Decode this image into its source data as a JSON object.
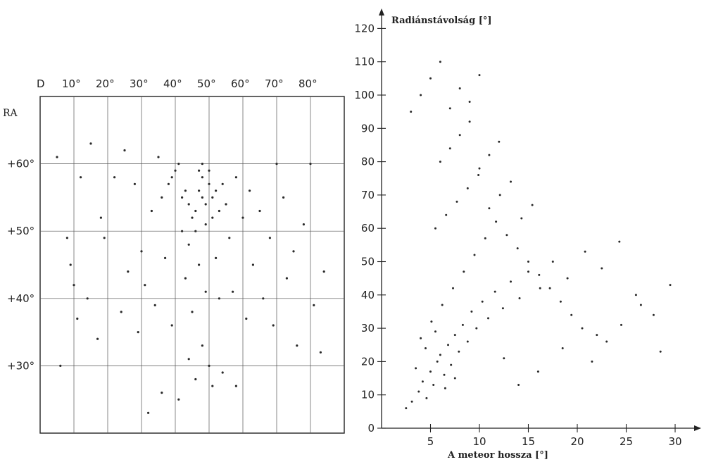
{
  "chart_data": [
    {
      "type": "scatter",
      "title": "",
      "xlabel": "D",
      "ylabel": "RA",
      "x_ticks": [
        "10°",
        "20°",
        "30°",
        "40°",
        "50°",
        "60°",
        "70°",
        "80°"
      ],
      "y_ticks": [
        "+60°",
        "+50°",
        "+40°",
        "+30°"
      ],
      "xlim": [
        0,
        90
      ],
      "ylim": [
        20,
        70
      ],
      "grid": true,
      "x": [
        48,
        49,
        47,
        50,
        46,
        51,
        45,
        52,
        48,
        44,
        53,
        49,
        47,
        50,
        43,
        54,
        46,
        51,
        42,
        55,
        48,
        40,
        39,
        41,
        38,
        42,
        36,
        35,
        44,
        33,
        58,
        60,
        62,
        28,
        25,
        30,
        22,
        65,
        68,
        70,
        18,
        15,
        72,
        75,
        12,
        10,
        78,
        80,
        8,
        5,
        84,
        47,
        52,
        43,
        56,
        37,
        31,
        63,
        26,
        19,
        66,
        73,
        14,
        9,
        81,
        49,
        45,
        53,
        39,
        57,
        34,
        61,
        29,
        24,
        69,
        76,
        17,
        11,
        83,
        6,
        48,
        50,
        46,
        51,
        44,
        54,
        41,
        58,
        36,
        32
      ],
      "y": [
        55,
        54,
        56,
        57,
        53,
        55,
        52,
        56,
        58,
        54,
        53,
        51,
        59,
        59,
        56,
        57,
        50,
        52,
        55,
        54,
        60,
        59,
        58,
        60,
        57,
        50,
        55,
        61,
        48,
        53,
        58,
        52,
        56,
        57,
        62,
        47,
        58,
        53,
        49,
        60,
        52,
        63,
        55,
        47,
        58,
        42,
        51,
        60,
        49,
        61,
        44,
        45,
        46,
        43,
        49,
        46,
        42,
        45,
        44,
        49,
        40,
        43,
        40,
        45,
        39,
        41,
        38,
        40,
        36,
        41,
        39,
        37,
        35,
        38,
        36,
        33,
        34,
        37,
        32,
        30,
        33,
        30,
        28,
        27,
        31,
        29,
        25,
        27,
        26,
        23
      ]
    },
    {
      "type": "scatter",
      "title": "",
      "xlabel": "A meteor hossza [°]",
      "ylabel": "Radiánstávolság [°]",
      "x_ticks": [
        "5",
        "10",
        "15",
        "20",
        "25",
        "30"
      ],
      "y_ticks": [
        "0",
        "10",
        "20",
        "30",
        "40",
        "50",
        "60",
        "70",
        "80",
        "90",
        "100",
        "110",
        "120"
      ],
      "xlim": [
        0,
        32
      ],
      "ylim": [
        0,
        125
      ],
      "grid": false,
      "x": [
        2.5,
        3.1,
        3.8,
        4.2,
        4.6,
        5.0,
        5.3,
        5.7,
        6.0,
        6.4,
        6.8,
        7.1,
        7.5,
        7.9,
        8.3,
        8.8,
        9.2,
        9.7,
        10.3,
        10.9,
        11.6,
        12.4,
        13.2,
        14.1,
        15.0,
        16.2,
        17.5,
        19.0,
        20.8,
        22.5,
        24.3,
        26.0,
        27.8,
        29.5,
        4.0,
        5.1,
        6.2,
        7.3,
        8.4,
        9.5,
        10.6,
        11.7,
        12.8,
        13.9,
        15.0,
        16.1,
        17.2,
        18.3,
        19.4,
        20.5,
        5.5,
        6.6,
        7.7,
        8.8,
        9.9,
        11.0,
        12.1,
        13.2,
        14.3,
        15.4,
        6.0,
        7.0,
        8.0,
        9.0,
        10.0,
        11.0,
        12.0,
        3.0,
        4.0,
        5.0,
        6.0,
        7.0,
        8.0,
        9.0,
        10.0,
        21.5,
        23.0,
        24.5,
        26.5,
        28.5,
        3.5,
        4.5,
        5.5,
        6.5,
        7.5,
        12.5,
        14.0,
        16.0,
        18.5,
        22.0
      ],
      "y": [
        6,
        8,
        11,
        14,
        9,
        17,
        13,
        20,
        22,
        16,
        25,
        19,
        28,
        23,
        31,
        26,
        35,
        30,
        38,
        33,
        41,
        36,
        44,
        39,
        47,
        42,
        50,
        45,
        53,
        48,
        56,
        40,
        34,
        43,
        27,
        32,
        37,
        42,
        47,
        52,
        57,
        62,
        58,
        54,
        50,
        46,
        42,
        38,
        34,
        30,
        60,
        64,
        68,
        72,
        76,
        66,
        70,
        74,
        63,
        67,
        80,
        84,
        88,
        92,
        78,
        82,
        86,
        95,
        100,
        105,
        110,
        96,
        102,
        98,
        106,
        20,
        26,
        31,
        37,
        23,
        18,
        24,
        29,
        12,
        15,
        21,
        13,
        17,
        24,
        28
      ]
    }
  ]
}
